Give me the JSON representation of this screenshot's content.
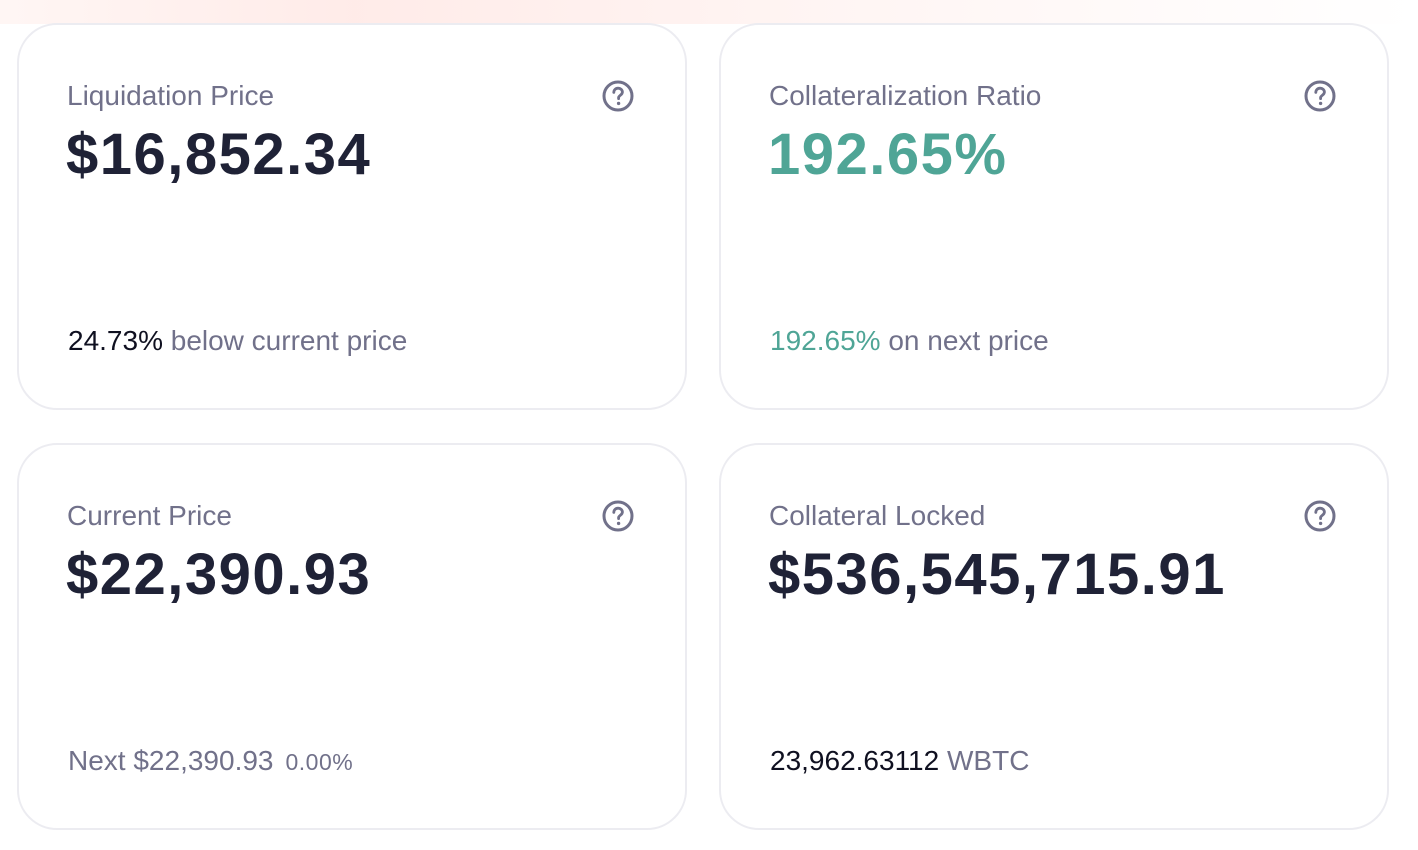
{
  "cards": {
    "liquidation": {
      "title": "Liquidation Price",
      "value": "$16,852.34",
      "footer_value": "24.73%",
      "footer_text": " below current price"
    },
    "collateralization": {
      "title": "Collateralization Ratio",
      "value": "192.65%",
      "footer_value": "192.65%",
      "footer_text": " on next price"
    },
    "current_price": {
      "title": "Current Price",
      "value": "$22,390.93",
      "footer_text": "Next $22,390.93",
      "footer_change": "0.00%"
    },
    "collateral_locked": {
      "title": "Collateral Locked",
      "value": "$536,545,715.91",
      "footer_value": "23,962.63112",
      "footer_text": " WBTC"
    }
  },
  "icons": {
    "help": "help-circle-icon"
  },
  "colors": {
    "title": "#71718a",
    "value": "#1f2236",
    "positive": "#4fa596",
    "border": "#ececf1"
  }
}
